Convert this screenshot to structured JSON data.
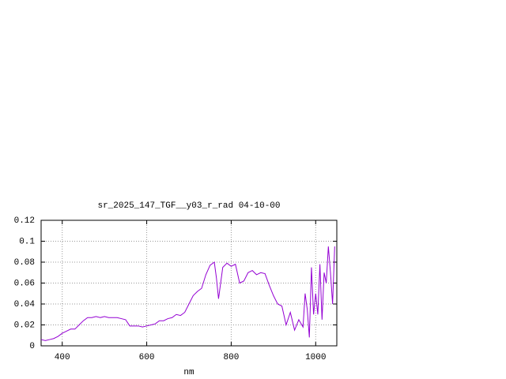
{
  "chart_data": {
    "type": "line",
    "title": "sr_2025_147_TGF__y03_r_rad 04-10-00",
    "x_label": "nm",
    "x": [
      350,
      360,
      370,
      380,
      390,
      400,
      410,
      420,
      430,
      440,
      450,
      460,
      470,
      480,
      490,
      500,
      510,
      520,
      530,
      540,
      550,
      560,
      570,
      580,
      590,
      600,
      610,
      620,
      630,
      640,
      650,
      660,
      670,
      680,
      690,
      700,
      710,
      720,
      730,
      740,
      750,
      760,
      765,
      770,
      780,
      790,
      800,
      810,
      820,
      830,
      840,
      850,
      860,
      870,
      880,
      890,
      900,
      910,
      920,
      930,
      940,
      950,
      960,
      970,
      975,
      980,
      985,
      990,
      995,
      1000,
      1005,
      1010,
      1015,
      1020,
      1025,
      1030,
      1035,
      1040,
      1045
    ],
    "values": [
      0.006,
      0.005,
      0.006,
      0.007,
      0.009,
      0.012,
      0.014,
      0.016,
      0.016,
      0.02,
      0.024,
      0.027,
      0.027,
      0.028,
      0.027,
      0.028,
      0.027,
      0.027,
      0.027,
      0.026,
      0.025,
      0.019,
      0.019,
      0.019,
      0.018,
      0.019,
      0.02,
      0.021,
      0.024,
      0.024,
      0.026,
      0.027,
      0.03,
      0.029,
      0.032,
      0.04,
      0.048,
      0.052,
      0.055,
      0.068,
      0.077,
      0.08,
      0.065,
      0.045,
      0.075,
      0.079,
      0.076,
      0.078,
      0.06,
      0.062,
      0.07,
      0.072,
      0.068,
      0.07,
      0.069,
      0.058,
      0.048,
      0.04,
      0.038,
      0.02,
      0.032,
      0.015,
      0.025,
      0.018,
      0.05,
      0.035,
      0.008,
      0.075,
      0.03,
      0.05,
      0.03,
      0.078,
      0.025,
      0.07,
      0.06,
      0.095,
      0.07,
      0.04,
      0.095
    ],
    "color": "#9400d3",
    "xlim": [
      350,
      1050
    ],
    "xticks": [
      400,
      600,
      800,
      1000
    ],
    "ylim": [
      0,
      0.12
    ],
    "yticks": [
      0,
      0.02,
      0.04,
      0.06,
      0.08,
      0.1,
      0.12
    ],
    "grid": true
  }
}
